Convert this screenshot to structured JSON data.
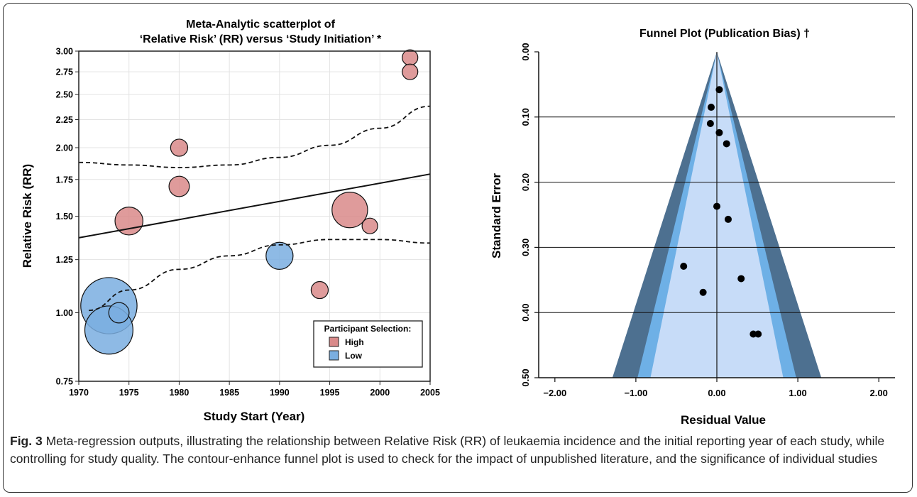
{
  "figure": {
    "label": "Fig. 3",
    "caption": "Meta-regression outputs, illustrating the relationship between Relative Risk (RR) of leukaemia incidence and the initial reporting year of each study, while controlling for study quality. The contour-enhance funnel plot is used to check for the impact of unpublished literature, and the significance of individual studies"
  },
  "chart_data": [
    {
      "type": "scatter",
      "subtype": "bubble",
      "title": [
        "Meta-Analytic scatterplot of",
        "‘Relative Risk’ (RR) versus ‘Study Initiation’ *"
      ],
      "xlabel": "Study Start (Year)",
      "ylabel": "Relative Risk (RR)",
      "xlim": [
        1970,
        2005
      ],
      "ylim": [
        0.75,
        3.0
      ],
      "y_scale": "log",
      "xticks": [
        1970,
        1975,
        1980,
        1985,
        1990,
        1995,
        2000,
        2005
      ],
      "yticks": [
        0.75,
        1.0,
        1.25,
        1.5,
        1.75,
        2.0,
        2.25,
        2.5,
        2.75,
        3.0
      ],
      "ytick_labels": [
        "0.75",
        "1.00",
        "1.25",
        "1.50",
        "1.75",
        "2.00",
        "2.25",
        "2.50",
        "2.75",
        "3.00"
      ],
      "grid": true,
      "legend": {
        "title": "Participant Selection:",
        "placement": "bottom-right"
      },
      "series": [
        {
          "name": "High",
          "color": "#d98a8a",
          "points": [
            {
              "x": 2003,
              "y": 2.92,
              "weight": 1
            },
            {
              "x": 2003,
              "y": 2.75,
              "weight": 1
            },
            {
              "x": 1980,
              "y": 2.0,
              "weight": 1.2
            },
            {
              "x": 1980,
              "y": 1.7,
              "weight": 1.7
            },
            {
              "x": 1975,
              "y": 1.47,
              "weight": 3.2
            },
            {
              "x": 1997,
              "y": 1.54,
              "weight": 5.2
            },
            {
              "x": 1999,
              "y": 1.44,
              "weight": 1
            },
            {
              "x": 1994,
              "y": 1.1,
              "weight": 1.2
            }
          ]
        },
        {
          "name": "Low",
          "color": "#7aaee0",
          "points": [
            {
              "x": 1973,
              "y": 1.03,
              "weight": 13
            },
            {
              "x": 1973,
              "y": 0.93,
              "weight": 9.5
            },
            {
              "x": 1974,
              "y": 1.0,
              "weight": 1.7
            },
            {
              "x": 1990,
              "y": 1.27,
              "weight": 3
            }
          ]
        }
      ],
      "regression": {
        "style": "solid",
        "points": [
          [
            1970,
            1.37
          ],
          [
            2005,
            1.79
          ]
        ]
      },
      "confidence_bounds": {
        "style": "dashed",
        "upper": [
          [
            1970,
            1.88
          ],
          [
            1975,
            1.86
          ],
          [
            1980,
            1.84
          ],
          [
            1985,
            1.86
          ],
          [
            1990,
            1.92
          ],
          [
            1995,
            2.02
          ],
          [
            2000,
            2.17
          ],
          [
            2005,
            2.38
          ]
        ],
        "lower": [
          [
            1971,
            1.01
          ],
          [
            1975,
            1.1
          ],
          [
            1980,
            1.2
          ],
          [
            1985,
            1.27
          ],
          [
            1990,
            1.33
          ],
          [
            1995,
            1.36
          ],
          [
            2000,
            1.36
          ],
          [
            2005,
            1.34
          ]
        ]
      }
    },
    {
      "type": "scatter",
      "subtype": "funnel",
      "title": "Funnel Plot (Publication Bias) †",
      "xlabel": "Residual Value",
      "ylabel": "Standard Error",
      "xlim": [
        -2.2,
        2.2
      ],
      "ylim": [
        0.5,
        0.0
      ],
      "y_inverted": true,
      "xticks": [
        -2.0,
        -1.0,
        0.0,
        1.0,
        2.0
      ],
      "xtick_labels": [
        "−2.00",
        "−1.00",
        "0.00",
        "1.00",
        "2.00"
      ],
      "yticks": [
        0.0,
        0.1,
        0.2,
        0.3,
        0.4,
        0.5
      ],
      "ytick_labels": [
        "0.00",
        "0.10",
        "0.20",
        "0.30",
        "0.40",
        "0.50"
      ],
      "horizontal_grid": [
        0.1,
        0.2,
        0.3,
        0.4
      ],
      "contours": [
        {
          "level": "outer",
          "half_width_at_se_0.5": 1.29,
          "color": "#4d7090"
        },
        {
          "level": "middle",
          "half_width_at_se_0.5": 0.98,
          "color": "#6eb0e6"
        },
        {
          "level": "inner",
          "half_width_at_se_0.5": 0.82,
          "color": "#c7dcf8"
        }
      ],
      "points": [
        {
          "x": 0.03,
          "y": 0.058
        },
        {
          "x": -0.07,
          "y": 0.085
        },
        {
          "x": -0.08,
          "y": 0.11
        },
        {
          "x": 0.03,
          "y": 0.124
        },
        {
          "x": 0.12,
          "y": 0.141
        },
        {
          "x": 0.0,
          "y": 0.237
        },
        {
          "x": 0.14,
          "y": 0.257
        },
        {
          "x": -0.41,
          "y": 0.329
        },
        {
          "x": 0.3,
          "y": 0.348
        },
        {
          "x": -0.17,
          "y": 0.369
        },
        {
          "x": 0.45,
          "y": 0.433
        },
        {
          "x": 0.51,
          "y": 0.433
        }
      ]
    }
  ]
}
